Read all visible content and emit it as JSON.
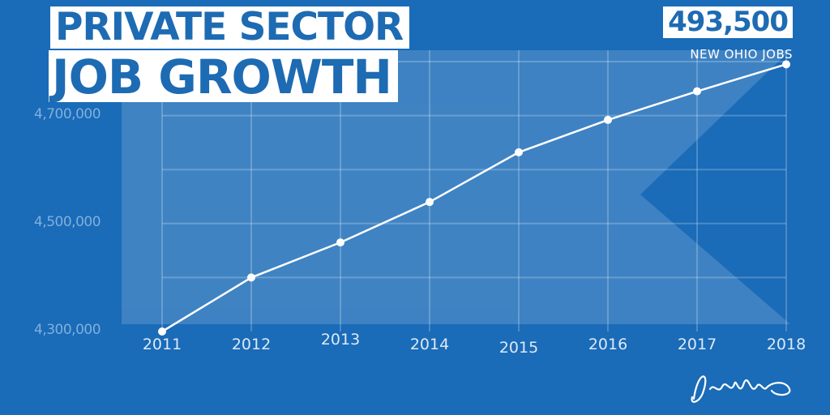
{
  "header": {
    "title_line1": "PRIVATE SECTOR",
    "title_line2": "JOB GROWTH",
    "stat_value": "493,500",
    "stat_caption": "NEW OHIO JOBS"
  },
  "colors": {
    "background": "#1a6bb8",
    "line": "#ffffff",
    "title_text": "#1d6bb3",
    "tick_text": "#7fb0dc"
  },
  "chart_data": {
    "type": "line",
    "title": "PRIVATE SECTOR JOB GROWTH",
    "xlabel": "",
    "ylabel": "",
    "x": [
      "2011",
      "2012",
      "2013",
      "2014",
      "2015",
      "2016",
      "2017",
      "2018"
    ],
    "values": [
      4300000,
      4400000,
      4465000,
      4540000,
      4632000,
      4692000,
      4745000,
      4795000
    ],
    "ylim": [
      4300000,
      4800000
    ],
    "yticks": [
      4700000,
      4500000,
      4300000
    ],
    "ytick_labels": [
      "4,700,000",
      "4,500,000",
      "4,300,000"
    ],
    "grid": true,
    "legend": "none",
    "annotation": "493,500 NEW OHIO JOBS"
  }
}
